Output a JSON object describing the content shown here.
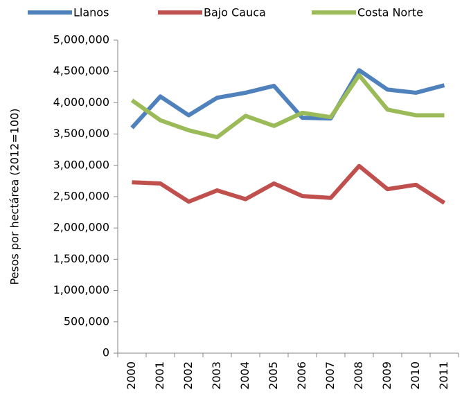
{
  "chart_data": {
    "type": "line",
    "y_label": "Pesos por hectárea (2012=100)",
    "categories": [
      "2000",
      "2001",
      "2002",
      "2003",
      "2004",
      "2005",
      "2006",
      "2007",
      "2008",
      "2009",
      "2010",
      "2011"
    ],
    "series": [
      {
        "name": "Llanos",
        "color": "#4f81bd",
        "values": [
          3600000,
          4100000,
          3800000,
          4080000,
          4160000,
          4270000,
          3760000,
          3750000,
          4520000,
          4210000,
          4160000,
          4280000
        ]
      },
      {
        "name": "Bajo Cauca",
        "color": "#c0504d",
        "values": [
          2730000,
          2710000,
          2420000,
          2600000,
          2460000,
          2710000,
          2510000,
          2480000,
          2990000,
          2620000,
          2690000,
          2400000
        ]
      },
      {
        "name": "Costa Norte",
        "color": "#9bbb59",
        "values": [
          4040000,
          3720000,
          3560000,
          3450000,
          3790000,
          3630000,
          3840000,
          3770000,
          4440000,
          3890000,
          3800000,
          3800000
        ]
      }
    ],
    "ylim": [
      0,
      5000000
    ],
    "yticks": [
      0,
      {
        "value": 500000,
        "label": "500,000"
      },
      {
        "value": 1000000,
        "label": "1,000,000"
      },
      {
        "value": 1500000,
        "label": "1,500,000"
      },
      {
        "value": 2000000,
        "label": "2,000,000"
      },
      {
        "value": 2500000,
        "label": "2,500,000"
      },
      {
        "value": 3000000,
        "label": "3,000,000"
      },
      {
        "value": 3500000,
        "label": "3,500,000"
      },
      {
        "value": 4000000,
        "label": "4,000,000"
      },
      {
        "value": 4500000,
        "label": "4,500,000"
      },
      {
        "value": 5000000,
        "label": "5,000,000"
      }
    ],
    "grid": false
  }
}
